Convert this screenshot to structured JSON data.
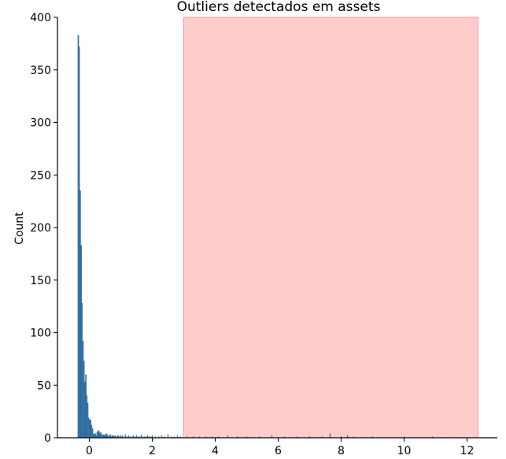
{
  "chart_data": {
    "type": "bar",
    "title": "Outliers detectados em assets",
    "xlabel": "",
    "ylabel": "Count",
    "xlim": [
      -1.0,
      12.5
    ],
    "ylim": [
      0,
      400
    ],
    "xticks": [
      0,
      2,
      4,
      6,
      8,
      10,
      12
    ],
    "yticks": [
      0,
      50,
      100,
      150,
      200,
      250,
      300,
      350,
      400
    ],
    "grid": false,
    "bar_color": "#3b7bb0",
    "highlight_color": "#ff9a9a",
    "highlight_region": {
      "x_start": 3.0,
      "x_end": 12.35
    },
    "x": [
      -0.35,
      -0.32,
      -0.29,
      -0.26,
      -0.23,
      -0.2,
      -0.17,
      -0.14,
      -0.11,
      -0.08,
      -0.05,
      -0.02,
      0.01,
      0.04,
      0.07,
      0.1,
      0.13,
      0.16,
      0.19,
      0.22,
      0.25,
      0.28,
      0.31,
      0.34,
      0.37,
      0.4,
      0.43,
      0.46,
      0.49,
      0.52,
      0.55,
      0.58,
      0.61,
      0.64,
      0.67,
      0.7,
      0.73,
      0.76,
      0.79,
      0.82,
      0.85,
      0.88,
      0.91,
      0.94,
      0.97,
      1.0,
      1.05,
      1.1,
      1.15,
      1.2,
      1.25,
      1.3,
      1.35,
      1.4,
      1.45,
      1.5,
      1.55,
      1.6,
      1.65,
      1.7,
      1.75,
      1.8,
      1.85,
      1.9,
      1.95,
      2.0,
      2.1,
      2.2,
      2.3,
      2.4,
      2.5,
      2.6,
      2.7,
      2.8,
      2.9,
      3.1,
      3.3,
      3.5,
      3.7,
      3.9,
      4.1,
      4.4,
      4.7,
      5.0,
      5.4,
      5.8,
      6.2,
      6.6,
      7.0,
      7.4,
      7.65,
      8.0,
      8.2,
      8.4,
      9.0,
      10.0,
      10.9
    ],
    "values": [
      383,
      372,
      235,
      183,
      128,
      92,
      73,
      53,
      60,
      40,
      33,
      19,
      17,
      17,
      12,
      9,
      4,
      3,
      4,
      2,
      5,
      7,
      6,
      4,
      5,
      3,
      2,
      3,
      2,
      3,
      4,
      2,
      1,
      2,
      3,
      1,
      2,
      2,
      1,
      2,
      1,
      1,
      2,
      1,
      1,
      2,
      2,
      1,
      3,
      1,
      2,
      1,
      1,
      2,
      1,
      2,
      1,
      1,
      3,
      1,
      1,
      1,
      2,
      1,
      1,
      2,
      1,
      1,
      2,
      1,
      3,
      1,
      1,
      2,
      1,
      1,
      1,
      1,
      1,
      1,
      1,
      2,
      1,
      1,
      1,
      2,
      1,
      1,
      1,
      1,
      4,
      1,
      2,
      1,
      1,
      1,
      1
    ]
  }
}
